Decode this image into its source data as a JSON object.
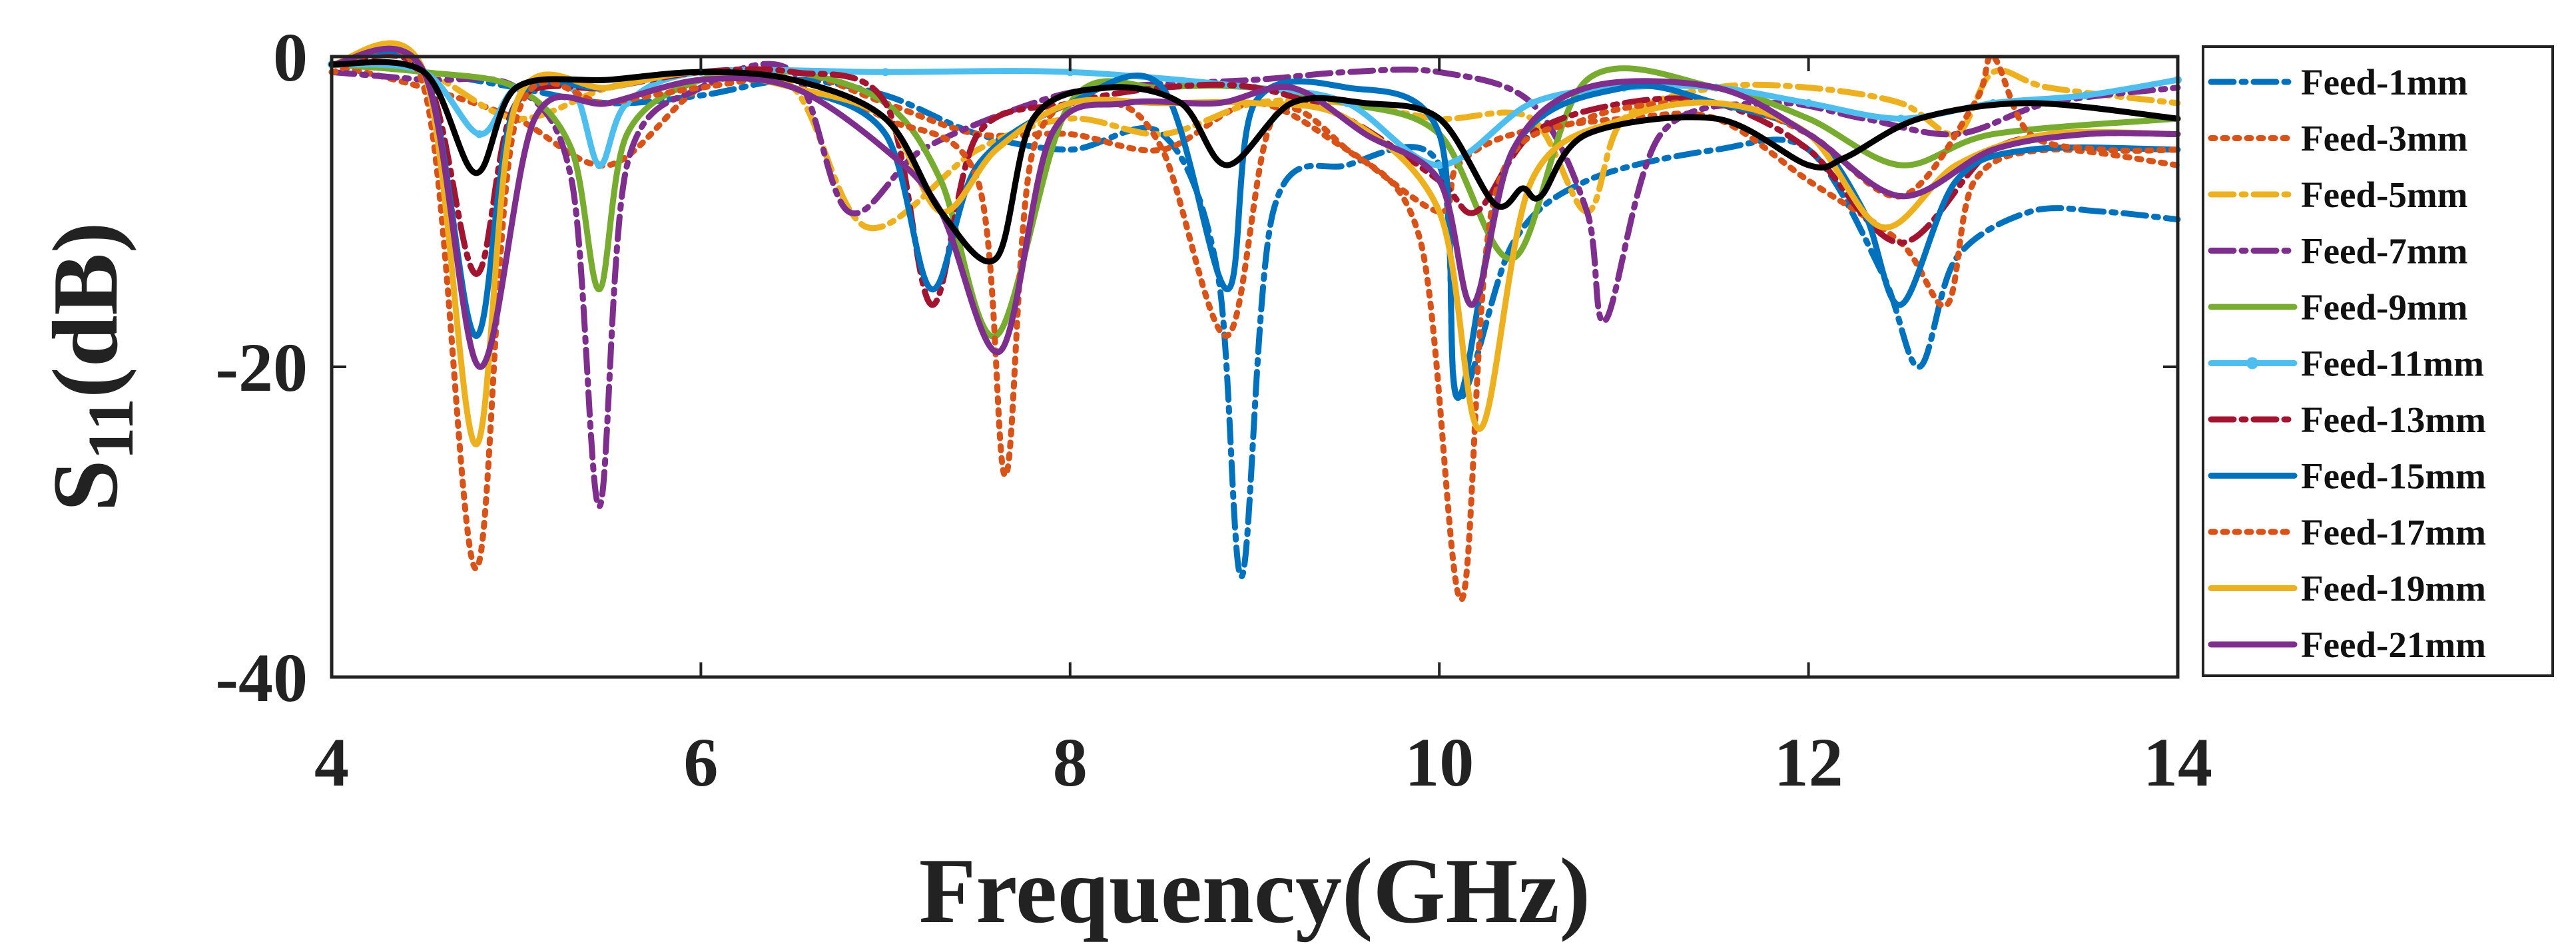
{
  "chart_data": {
    "type": "line",
    "xlabel": "Frequency(GHz)",
    "ylabel": {
      "main": "S",
      "sub": "11",
      "unit": "(dB)"
    },
    "xlim": [
      4,
      14
    ],
    "ylim": [
      -40,
      0
    ],
    "xticks": [
      4,
      6,
      8,
      10,
      12,
      14
    ],
    "yticks": [
      0,
      -20,
      -40
    ],
    "legend_position": "right",
    "series": [
      {
        "name": "Feed-1mm",
        "color": "#0072BD",
        "dash": "dashdot",
        "x": [
          4,
          4.5,
          5,
          5.5,
          6,
          6.5,
          7,
          7.5,
          8,
          8.5,
          8.8,
          8.93,
          9.1,
          9.5,
          10,
          10.1,
          10.4,
          10.8,
          11.5,
          12,
          12.4,
          12.6,
          12.8,
          13.2,
          13.6,
          14
        ],
        "y": [
          -0.5,
          -1,
          -2,
          -3,
          -2.5,
          -1.5,
          -2.5,
          -5,
          -6,
          -5,
          -14,
          -33.5,
          -10,
          -7,
          -7,
          -22,
          -12,
          -8,
          -6,
          -6,
          -14,
          -20,
          -13,
          -10,
          -10,
          -10.5
        ]
      },
      {
        "name": "Feed-3mm",
        "color": "#D95319",
        "dash": "dot",
        "x": [
          4,
          4.5,
          5,
          5.5,
          6,
          6.5,
          7,
          7.5,
          8,
          8.5,
          9,
          9.5,
          10,
          10.1,
          10.4,
          11,
          11.5,
          12,
          12.5,
          12.75,
          12.9,
          13.3,
          14
        ],
        "y": [
          -0.5,
          -2,
          -4,
          -7,
          -2,
          -1,
          -3,
          -5,
          -5,
          -6,
          -3,
          -6,
          -10,
          -7,
          -5,
          -4,
          -4,
          -8,
          -12,
          -16,
          -8,
          -6,
          -7
        ]
      },
      {
        "name": "Feed-5mm",
        "color": "#EDB120",
        "dash": "dashdot",
        "x": [
          4,
          4.5,
          5,
          5.5,
          6,
          6.5,
          6.9,
          7.5,
          8,
          8.5,
          9,
          9.5,
          10,
          10.5,
          10.8,
          11,
          11.5,
          12,
          12.5,
          12.8,
          13,
          13.3,
          14
        ],
        "y": [
          -0.5,
          -1,
          -4,
          -2,
          -1,
          -2,
          -11,
          -6,
          -4,
          -5,
          -3,
          -3,
          -4,
          -4,
          -10,
          -4,
          -2,
          -2,
          -3,
          -5,
          -1,
          -2,
          -3
        ]
      },
      {
        "name": "Feed-7mm",
        "color": "#7E2F8E",
        "dash": "dashdot",
        "x": [
          4,
          4.5,
          5,
          5.3,
          5.45,
          5.6,
          6,
          6.5,
          6.8,
          7.2,
          7.8,
          8.2,
          9,
          9.5,
          10,
          10.5,
          10.8,
          10.9,
          11.2,
          11.8,
          12.3,
          12.8,
          13.3,
          14
        ],
        "y": [
          -1,
          -1.5,
          -2,
          -8,
          -29,
          -7,
          -2,
          -1,
          -10,
          -6,
          -3,
          -2,
          -1.5,
          -1,
          -1,
          -3,
          -10,
          -17,
          -5,
          -3,
          -4,
          -5,
          -3,
          -2
        ]
      },
      {
        "name": "Feed-9mm",
        "color": "#77AC30",
        "dash": "solid",
        "x": [
          4,
          4.5,
          5,
          5.3,
          5.45,
          5.6,
          6,
          6.5,
          7,
          7.3,
          7.6,
          8,
          8.5,
          9,
          9.5,
          10,
          10.4,
          10.8,
          11.5,
          12,
          12.5,
          13,
          14
        ],
        "y": [
          -0.5,
          -1,
          -2,
          -6,
          -15,
          -5,
          -1.5,
          -1,
          -3,
          -8,
          -18,
          -3,
          -2,
          -2,
          -3,
          -5,
          -13,
          -1.5,
          -2,
          -4,
          -7,
          -5,
          -4
        ]
      },
      {
        "name": "Feed-11mm",
        "color": "#4DBEEE",
        "dash": "solid",
        "markers": true,
        "x": [
          4,
          4.5,
          4.8,
          5,
          5.3,
          5.45,
          5.6,
          6,
          7,
          8,
          9,
          9.5,
          10,
          10.5,
          11,
          11.5,
          12,
          12.5,
          13,
          13.5,
          14
        ],
        "y": [
          -0.5,
          -1,
          -5,
          -2,
          -2,
          -7,
          -3,
          -1,
          -1,
          -1,
          -2,
          -3,
          -7,
          -3,
          -2,
          -2,
          -3,
          -4,
          -3,
          -2.5,
          -1.5
        ]
      },
      {
        "name": "Feed-13mm",
        "color": "#A2142F",
        "dash": "dashdot",
        "x": [
          4,
          4.5,
          4.78,
          5,
          5.5,
          6,
          6.5,
          7,
          7.25,
          7.5,
          8,
          8.5,
          9,
          9.5,
          10,
          10.2,
          10.5,
          11,
          11.5,
          12,
          12.5,
          13,
          13.5,
          14
        ],
        "y": [
          -0.5,
          -1,
          -14,
          -3,
          -2,
          -1,
          -1,
          -3,
          -16,
          -5,
          -3,
          -2,
          -2,
          -4,
          -8,
          -10,
          -5,
          -3,
          -3,
          -6,
          -12,
          -6,
          -5,
          -5
        ]
      },
      {
        "name": "Feed-15mm",
        "color": "#0072BD",
        "dash": "solid",
        "x": [
          4,
          4.5,
          4.78,
          5,
          5.5,
          6,
          6.5,
          7,
          7.25,
          7.5,
          8,
          8.5,
          8.85,
          9,
          9.5,
          10,
          10.1,
          10.4,
          11,
          11.5,
          12,
          12.3,
          12.5,
          12.8,
          13.2,
          14
        ],
        "y": [
          -0.5,
          -1,
          -18,
          -3,
          -2,
          -1,
          -2,
          -5,
          -15,
          -7,
          -3,
          -2,
          -15,
          -3,
          -2,
          -5,
          -22,
          -6,
          -2,
          -3,
          -5,
          -10,
          -16,
          -8,
          -6,
          -6
        ]
      },
      {
        "name": "Feed-17mm",
        "color": "#D95319",
        "dash": "dot",
        "x": [
          4,
          4.5,
          4.78,
          5,
          5.5,
          6,
          6.5,
          7,
          7.5,
          7.65,
          7.8,
          8.2,
          8.5,
          8.85,
          9.1,
          9.5,
          9.9,
          10.12,
          10.3,
          10.8,
          11.5,
          12,
          12.5,
          12.9,
          13.0,
          13.2,
          13.6,
          14
        ],
        "y": [
          -1,
          -2,
          -33,
          -4,
          -3,
          -2,
          -1.5,
          -4,
          -8,
          -27,
          -6,
          -3,
          -6,
          -18,
          -4,
          -6,
          -12,
          -35,
          -9,
          -4,
          -3,
          -5,
          -9,
          -3,
          0,
          -5,
          -6,
          -6
        ]
      },
      {
        "name": "Feed-19mm",
        "color": "#EDB120",
        "dash": "solid",
        "x": [
          4,
          4.5,
          4.78,
          5,
          5.5,
          6,
          6.5,
          7,
          7.3,
          7.6,
          8,
          8.5,
          9,
          9.5,
          10,
          10.22,
          10.5,
          11,
          11.5,
          12,
          12.4,
          12.8,
          13.3,
          14
        ],
        "y": [
          -0.5,
          -1,
          -25,
          -3,
          -2,
          -1,
          -2,
          -4,
          -10,
          -6,
          -3,
          -3,
          -3,
          -4,
          -10,
          -24,
          -8,
          -4,
          -3,
          -5,
          -11,
          -7,
          -5,
          -5
        ]
      },
      {
        "name": "Feed-21mm",
        "color": "#7E2F8E",
        "dash": "solid",
        "x": [
          4,
          4.5,
          4.8,
          5.1,
          5.5,
          6,
          6.5,
          7,
          7.3,
          7.62,
          7.9,
          8.3,
          8.8,
          9.2,
          9.6,
          10,
          10.18,
          10.4,
          10.8,
          11.5,
          12,
          12.5,
          13,
          13.5,
          14
        ],
        "y": [
          -0.5,
          -1,
          -20,
          -4,
          -3,
          -1.5,
          -2,
          -6,
          -10,
          -19,
          -5,
          -3,
          -3,
          -2,
          -5,
          -8,
          -16,
          -6,
          -2,
          -2,
          -5,
          -9,
          -6,
          -5,
          -5
        ]
      },
      {
        "name": "",
        "color": "#000000",
        "dash": "solid",
        "legend": false,
        "x": [
          4,
          4.5,
          4.78,
          5,
          5.5,
          6,
          6.5,
          7,
          7.3,
          7.6,
          7.8,
          8.2,
          8.6,
          8.85,
          9.2,
          9.6,
          10,
          10.3,
          10.45,
          10.55,
          10.8,
          11.5,
          12,
          12.2,
          12.6,
          13.2,
          14
        ],
        "y": [
          -0.5,
          -1,
          -7.5,
          -2,
          -1.5,
          -1,
          -1.5,
          -4,
          -10,
          -13,
          -4,
          -2,
          -3,
          -7,
          -3,
          -3,
          -4,
          -9.5,
          -8.5,
          -9,
          -5,
          -4,
          -7,
          -6.5,
          -4,
          -3,
          -4
        ]
      }
    ]
  }
}
